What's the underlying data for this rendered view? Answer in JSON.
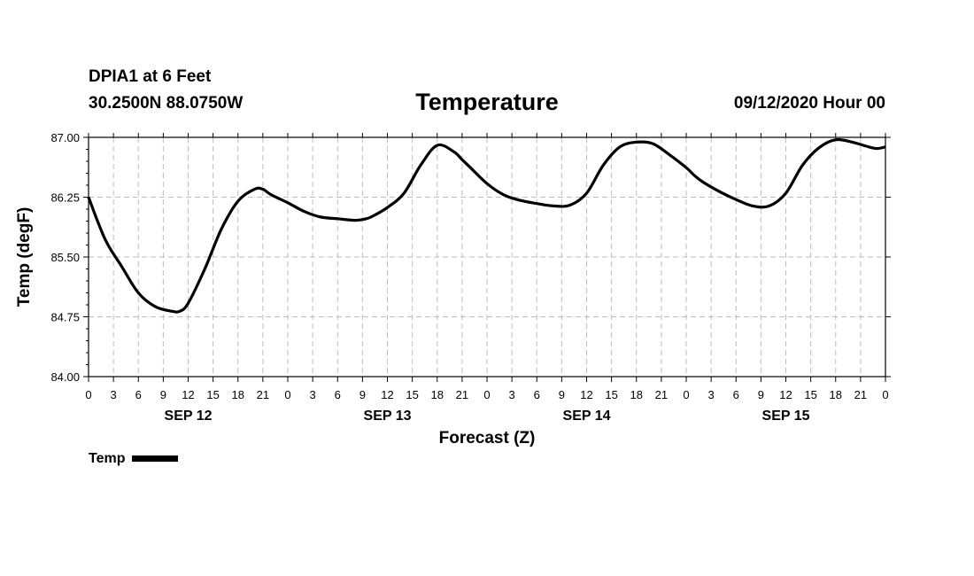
{
  "header": {
    "station": "DPIA1 at 6 Feet",
    "coords": "30.2500N 88.0750W",
    "title": "Temperature",
    "run_time": "09/12/2020 Hour 00"
  },
  "legend": {
    "label": "Temp",
    "color": "#000000"
  },
  "chart_data": {
    "type": "line",
    "title": "Temperature",
    "xlabel": "Forecast (Z)",
    "ylabel": "Temp (degF)",
    "xlim": [
      0,
      96
    ],
    "ylim": [
      84.0,
      87.0
    ],
    "y_ticks": [
      "84.00",
      "84.75",
      "85.50",
      "86.25",
      "87.00"
    ],
    "y_tick_values": [
      84.0,
      84.75,
      85.5,
      86.25,
      87.0
    ],
    "x_tick_labels": [
      "0",
      "3",
      "6",
      "9",
      "12",
      "15",
      "18",
      "21",
      "0",
      "3",
      "6",
      "9",
      "12",
      "15",
      "18",
      "21",
      "0",
      "3",
      "6",
      "9",
      "12",
      "15",
      "18",
      "21",
      "0",
      "3",
      "6",
      "9",
      "12",
      "15",
      "18",
      "21",
      "0"
    ],
    "day_labels": [
      {
        "label": "SEP 12",
        "hour": 12
      },
      {
        "label": "SEP 13",
        "hour": 36
      },
      {
        "label": "SEP 14",
        "hour": 60
      },
      {
        "label": "SEP 15",
        "hour": 84
      }
    ],
    "grid": true,
    "legend_position": "bottom-left",
    "series": [
      {
        "name": "Temp",
        "color": "#000000",
        "x": [
          0,
          2,
          4,
          6,
          8,
          10,
          11,
          12,
          14,
          16,
          18,
          20,
          21,
          22,
          24,
          26,
          28,
          30,
          32,
          33,
          34,
          36,
          38,
          40,
          42,
          44,
          45,
          46,
          48,
          50,
          52,
          54,
          56,
          58,
          60,
          62,
          64,
          66,
          68,
          70,
          72,
          73,
          74,
          76,
          78,
          80,
          82,
          84,
          86,
          88,
          90,
          92,
          94,
          95,
          96
        ],
        "y": [
          86.25,
          85.72,
          85.38,
          85.05,
          84.88,
          84.82,
          84.82,
          84.92,
          85.35,
          85.85,
          86.2,
          86.35,
          86.35,
          86.28,
          86.18,
          86.07,
          86.0,
          85.98,
          85.96,
          85.97,
          86.0,
          86.12,
          86.3,
          86.65,
          86.9,
          86.82,
          86.72,
          86.62,
          86.42,
          86.28,
          86.21,
          86.17,
          86.14,
          86.15,
          86.3,
          86.65,
          86.88,
          86.94,
          86.92,
          86.78,
          86.62,
          86.52,
          86.44,
          86.32,
          86.22,
          86.14,
          86.14,
          86.3,
          86.65,
          86.87,
          86.97,
          86.94,
          86.88,
          86.86,
          86.88
        ]
      }
    ]
  }
}
